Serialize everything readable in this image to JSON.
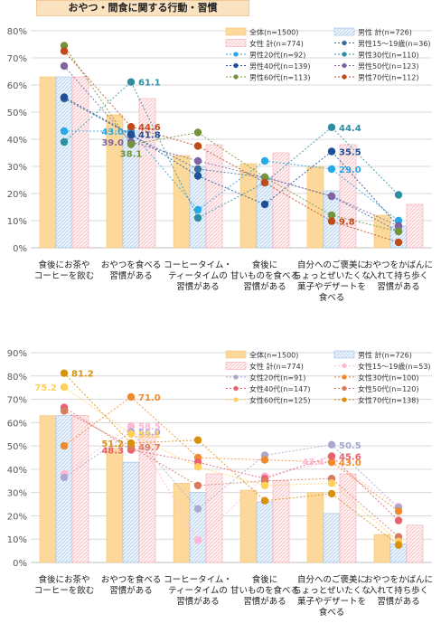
{
  "title": "おやつ・間食に関する行動・習慣",
  "categories": [
    "食後にお茶や\nコーヒーを飲む",
    "おやつを食べる\n習慣がある",
    "コーヒータイム・\nティータイムの\n習慣がある",
    "食後に\n甘いものを食べる\n習慣がある",
    "自分へのご褒美に\nちょっとぜいたくな\n菓子やデザートを\n食べる",
    "おやつをかばんに\n入れて持ち歩く\n習慣がある"
  ],
  "colors": {
    "total": "#fcd99a",
    "male_total": "#b9d3ef",
    "female_total": "#f9c4c9",
    "m20": "#29a8e8",
    "m30": "#2d8ea3",
    "m40": "#1f4f96",
    "m50": "#8064a2",
    "m60": "#74943c",
    "m70": "#c04a1a",
    "m15": "#3a6d9a",
    "f15": "#ffb7d5",
    "f20": "#a9a9cf",
    "f30": "#f08a2c",
    "f40": "#e9606e",
    "f50": "#d97b5f",
    "f60": "#ffd05a",
    "f70": "#d8900d"
  },
  "chart_data": [
    {
      "type": "bar",
      "ylim": [
        0,
        80
      ],
      "yticks": [
        "0%",
        "10%",
        "20%",
        "30%",
        "40%",
        "50%",
        "60%",
        "70%",
        "80%"
      ],
      "bars": [
        {
          "name": "全体(n=1500)",
          "key": "total",
          "values": [
            63,
            49,
            34,
            31,
            30,
            12
          ]
        },
        {
          "name": "男性 計(n=726)",
          "key": "male_total",
          "values": [
            63,
            43,
            30,
            26,
            21,
            8
          ]
        },
        {
          "name": "女性 計(n=774)",
          "key": "female_total",
          "values": [
            63,
            55,
            38,
            35,
            38,
            16
          ]
        }
      ],
      "series": [
        {
          "name": "男性15～19歳(n=36)",
          "key": "m15",
          "values": [
            55,
            41.5,
            29,
            26,
            19,
            6
          ]
        },
        {
          "name": "男性20代(n=92)",
          "key": "m20",
          "values": [
            43,
            43,
            14,
            32,
            29,
            10
          ]
        },
        {
          "name": "男性30代(n=110)",
          "key": "m30",
          "values": [
            39,
            61.1,
            11,
            24,
            44.4,
            19.5
          ]
        },
        {
          "name": "男性40代(n=139)",
          "key": "m40",
          "values": [
            55.5,
            41.8,
            26.5,
            16,
            35.5,
            8
          ]
        },
        {
          "name": "男性50代(n=123)",
          "key": "m50",
          "values": [
            67,
            39,
            32,
            26,
            19,
            8
          ]
        },
        {
          "name": "男性60代(n=113)",
          "key": "m60",
          "values": [
            74.5,
            38.1,
            42.5,
            26,
            12,
            6
          ]
        },
        {
          "name": "男性70代(n=112)",
          "key": "m70",
          "values": [
            72.5,
            44.6,
            37.5,
            24,
            9.8,
            2
          ]
        }
      ],
      "value_labels": [
        {
          "ci": 1,
          "v": 61.1,
          "text": "61.1",
          "key": "m30",
          "side": "r"
        },
        {
          "ci": 1,
          "v": 44.6,
          "text": "44.6",
          "key": "m70",
          "side": "r"
        },
        {
          "ci": 1,
          "v": 41.8,
          "text": "41.8",
          "key": "m40",
          "side": "r"
        },
        {
          "ci": 1,
          "v": 43.0,
          "text": "43.0",
          "key": "m20",
          "side": "l"
        },
        {
          "ci": 1,
          "v": 39.0,
          "text": "39.0",
          "key": "m50",
          "side": "l"
        },
        {
          "ci": 1,
          "v": 38.1,
          "text": "38.1",
          "key": "m60",
          "side": "c"
        },
        {
          "ci": 4,
          "v": 44.4,
          "text": "44.4",
          "key": "m30",
          "side": "r"
        },
        {
          "ci": 4,
          "v": 35.5,
          "text": "35.5",
          "key": "m40",
          "side": "r"
        },
        {
          "ci": 4,
          "v": 29.0,
          "text": "29.0",
          "key": "m20",
          "side": "r"
        },
        {
          "ci": 4,
          "v": 9.8,
          "text": "9.8",
          "key": "m70",
          "side": "r"
        }
      ]
    },
    {
      "type": "bar",
      "ylim": [
        0,
        90
      ],
      "yticks": [
        "0%",
        "10%",
        "20%",
        "30%",
        "40%",
        "50%",
        "60%",
        "70%",
        "80%",
        "90%"
      ],
      "bars": [
        {
          "name": "全体(n=1500)",
          "key": "total",
          "values": [
            63,
            49,
            34,
            31,
            30,
            12
          ]
        },
        {
          "name": "男性 計(n=726)",
          "key": "male_total",
          "values": [
            63,
            43,
            30,
            26,
            21,
            8
          ]
        },
        {
          "name": "女性 計(n=774)",
          "key": "female_total",
          "values": [
            63,
            55,
            38,
            35,
            38,
            16
          ]
        }
      ],
      "series": [
        {
          "name": "女性15～19歳(n=53)",
          "key": "f15",
          "values": [
            38,
            58.5,
            9.5,
            37,
            43.4,
            24
          ]
        },
        {
          "name": "女性20代(n=91)",
          "key": "f20",
          "values": [
            36.5,
            56,
            23,
            46,
            50.5,
            23.5
          ]
        },
        {
          "name": "女性30代(n=100)",
          "key": "f30",
          "values": [
            50,
            71.0,
            45,
            44,
            43,
            22
          ]
        },
        {
          "name": "女性40代(n=147)",
          "key": "f40",
          "values": [
            66.5,
            48.3,
            43,
            36,
            45.6,
            18
          ]
        },
        {
          "name": "女性50代(n=120)",
          "key": "f50",
          "values": [
            65,
            49.7,
            33,
            35,
            36,
            11
          ]
        },
        {
          "name": "女性60代(n=125)",
          "key": "f60",
          "values": [
            75.2,
            55.1,
            41,
            33,
            34,
            9
          ]
        },
        {
          "name": "女性70代(n=138)",
          "key": "f70",
          "values": [
            81.2,
            51.2,
            52.5,
            26.5,
            29.5,
            7.5
          ]
        }
      ],
      "value_labels": [
        {
          "ci": 0,
          "v": 81.2,
          "text": "81.2",
          "key": "f70",
          "side": "r"
        },
        {
          "ci": 0,
          "v": 75.2,
          "text": "75.2",
          "key": "f60",
          "side": "l"
        },
        {
          "ci": 1,
          "v": 71.0,
          "text": "71.0",
          "key": "f30",
          "side": "r"
        },
        {
          "ci": 1,
          "v": 58.5,
          "text": "58.5",
          "key": "f15",
          "side": "r"
        },
        {
          "ci": 1,
          "v": 56.0,
          "text": "56.0",
          "key": "f20",
          "side": "r"
        },
        {
          "ci": 1,
          "v": 55.1,
          "text": "55.1",
          "key": "f60",
          "side": "r"
        },
        {
          "ci": 1,
          "v": 51.2,
          "text": "51.2",
          "key": "f70",
          "side": "l"
        },
        {
          "ci": 1,
          "v": 49.7,
          "text": "49.7",
          "key": "f50",
          "side": "r"
        },
        {
          "ci": 1,
          "v": 48.3,
          "text": "48.3",
          "key": "f40",
          "side": "l"
        },
        {
          "ci": 4,
          "v": 50.5,
          "text": "50.5",
          "key": "f20",
          "side": "r"
        },
        {
          "ci": 4,
          "v": 45.6,
          "text": "45.6",
          "key": "f40",
          "side": "r"
        },
        {
          "ci": 4,
          "v": 43.4,
          "text": "43.4",
          "key": "f15",
          "side": "l"
        },
        {
          "ci": 4,
          "v": 43.0,
          "text": "43.0",
          "key": "f30",
          "side": "r"
        }
      ]
    }
  ]
}
